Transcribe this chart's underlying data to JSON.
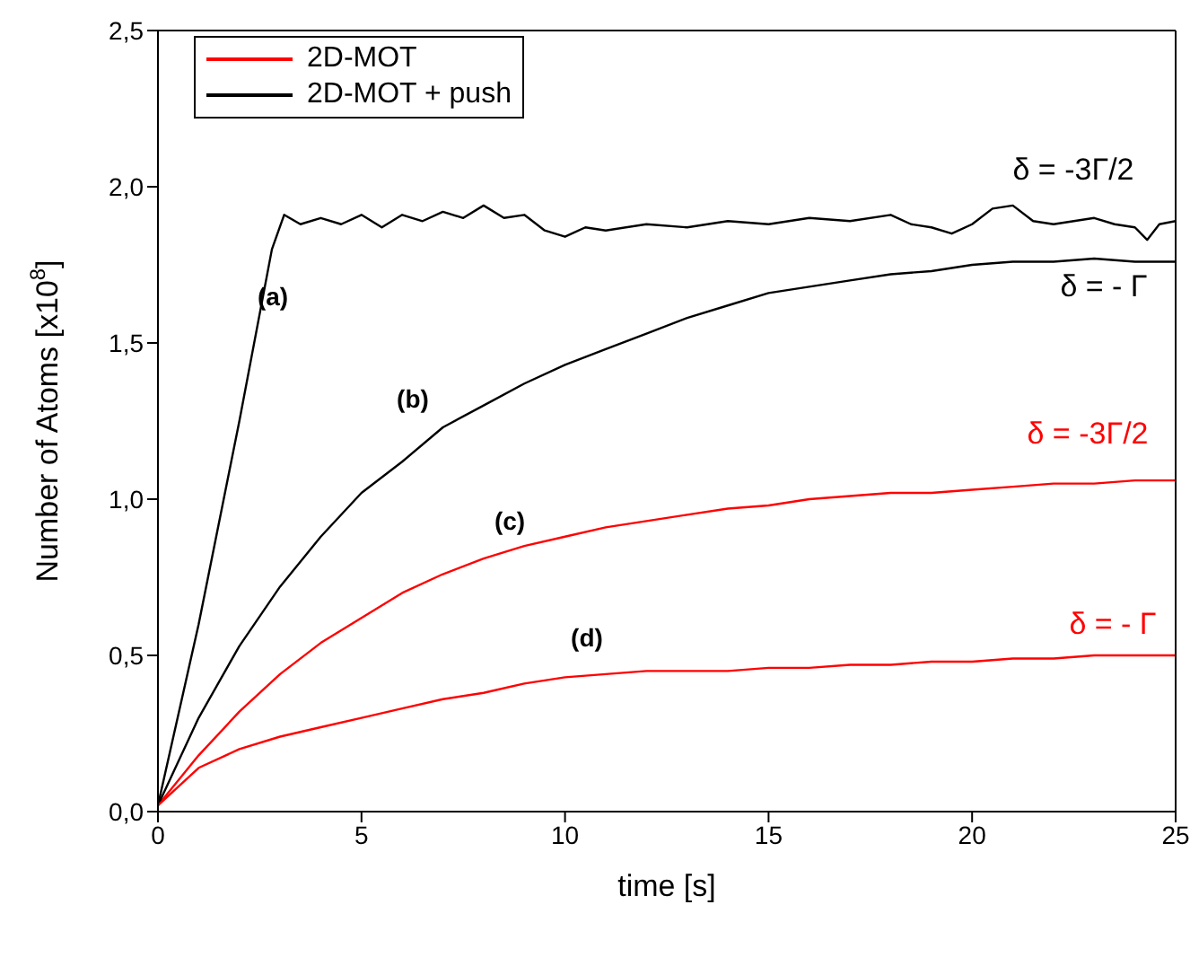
{
  "chart_data": {
    "type": "line",
    "xlabel": "time [s]",
    "ylabel": "Number of Atoms [x10$^{8}$]",
    "xlim": [
      0,
      25
    ],
    "xticks": [
      0,
      5,
      10,
      15,
      20,
      25
    ],
    "ylim": [
      0,
      2.5
    ],
    "yticks": [
      {
        "value": 0,
        "label": "0,0"
      },
      {
        "value": 0.5,
        "label": "0,5"
      },
      {
        "value": 1,
        "label": "1,0"
      },
      {
        "value": 1.5,
        "label": "1,5"
      },
      {
        "value": 2,
        "label": "2,0"
      },
      {
        "value": 2.5,
        "label": "2,5"
      }
    ],
    "legend": "top left",
    "marker": "none",
    "line_style": "solid",
    "series": [
      {
        "name": "2D-MOT",
        "color": "#ff0000",
        "x": [
          0,
          1,
          2,
          3,
          4,
          5,
          6,
          7,
          8,
          9,
          10,
          11,
          12,
          13,
          14,
          15,
          16,
          17,
          18,
          19,
          20,
          21,
          22,
          23,
          24,
          25
        ],
        "values": [
          0.02,
          0.18,
          0.32,
          0.44,
          0.54,
          0.62,
          0.7,
          0.76,
          0.81,
          0.85,
          0.88,
          0.91,
          0.93,
          0.95,
          0.97,
          0.98,
          1.0,
          1.01,
          1.02,
          1.02,
          1.03,
          1.04,
          1.05,
          1.05,
          1.06,
          1.06
        ]
      },
      {
        "name": "2D-MOT + push",
        "color": "#000000",
        "x": [
          0,
          1,
          2,
          2.8,
          3.1,
          3.5,
          4,
          4.5,
          5,
          5.5,
          6,
          6.5,
          7,
          7.5,
          8,
          8.5,
          9,
          9.5,
          10,
          10.5,
          11,
          12,
          13,
          14,
          15,
          16,
          17,
          18,
          18.5,
          19,
          19.5,
          20,
          20.5,
          21,
          21.5,
          22,
          23,
          23.5,
          24,
          24.3,
          24.6,
          25
        ],
        "values": [
          0.02,
          0.6,
          1.25,
          1.8,
          1.91,
          1.88,
          1.9,
          1.88,
          1.91,
          1.87,
          1.91,
          1.89,
          1.92,
          1.9,
          1.94,
          1.9,
          1.91,
          1.86,
          1.84,
          1.87,
          1.86,
          1.88,
          1.87,
          1.89,
          1.88,
          1.9,
          1.89,
          1.91,
          1.88,
          1.87,
          1.85,
          1.88,
          1.93,
          1.94,
          1.89,
          1.88,
          1.9,
          1.88,
          1.87,
          1.83,
          1.88,
          1.89
        ]
      },
      {
        "color": "#000000",
        "x": [
          0,
          1,
          2,
          3,
          4,
          5,
          6,
          7,
          8,
          9,
          10,
          11,
          12,
          13,
          14,
          15,
          16,
          17,
          18,
          19,
          20,
          21,
          22,
          23,
          24,
          25
        ],
        "values": [
          0.02,
          0.3,
          0.53,
          0.72,
          0.88,
          1.02,
          1.12,
          1.23,
          1.3,
          1.37,
          1.43,
          1.48,
          1.53,
          1.58,
          1.62,
          1.66,
          1.68,
          1.7,
          1.72,
          1.73,
          1.75,
          1.76,
          1.76,
          1.77,
          1.76,
          1.76
        ]
      },
      {
        "color": "#ff0000",
        "x": [
          0,
          1,
          2,
          3,
          4,
          5,
          6,
          7,
          8,
          9,
          10,
          11,
          12,
          13,
          14,
          15,
          16,
          17,
          18,
          19,
          20,
          21,
          22,
          23,
          24,
          25
        ],
        "values": [
          0.02,
          0.14,
          0.2,
          0.24,
          0.27,
          0.3,
          0.33,
          0.36,
          0.38,
          0.41,
          0.43,
          0.44,
          0.45,
          0.45,
          0.45,
          0.46,
          0.46,
          0.47,
          0.47,
          0.48,
          0.48,
          0.49,
          0.49,
          0.5,
          0.5,
          0.5
        ]
      }
    ],
    "annotations": [
      "(a)",
      "(b)",
      "(c)",
      "(d)",
      "δ = -3Γ/2",
      "δ = - Γ",
      "δ = -3Γ/2",
      "δ = - Γ"
    ]
  }
}
